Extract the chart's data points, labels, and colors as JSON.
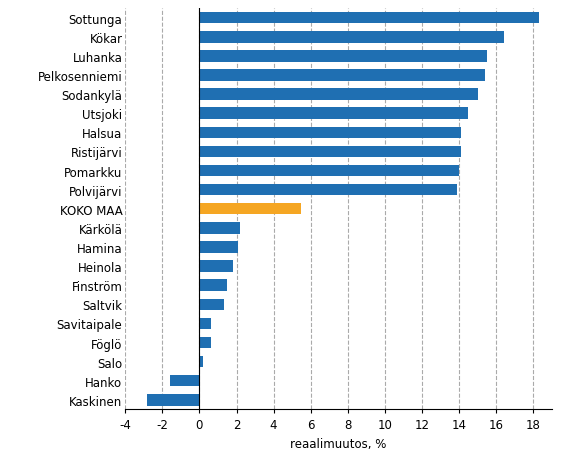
{
  "categories": [
    "Kaskinen",
    "Hanko",
    "Salo",
    "Föglö",
    "Savitaipale",
    "Saltvik",
    "Finström",
    "Heinola",
    "Hamina",
    "Kärkölä",
    "KOKO MAA",
    "Polvijärvi",
    "Pomarkku",
    "Ristijärvi",
    "Halsua",
    "Utsjoki",
    "Sodankylä",
    "Pelkosenniemi",
    "Luhanka",
    "Kökar",
    "Sottunga"
  ],
  "values": [
    -2.8,
    -1.6,
    0.2,
    0.6,
    0.6,
    1.3,
    1.5,
    1.8,
    2.1,
    2.2,
    5.5,
    13.9,
    14.0,
    14.1,
    14.1,
    14.5,
    15.0,
    15.4,
    15.5,
    16.4,
    18.3
  ],
  "bar_colors": [
    "#1F6FB2",
    "#1F6FB2",
    "#1F6FB2",
    "#1F6FB2",
    "#1F6FB2",
    "#1F6FB2",
    "#1F6FB2",
    "#1F6FB2",
    "#1F6FB2",
    "#1F6FB2",
    "#F5A623",
    "#1F6FB2",
    "#1F6FB2",
    "#1F6FB2",
    "#1F6FB2",
    "#1F6FB2",
    "#1F6FB2",
    "#1F6FB2",
    "#1F6FB2",
    "#1F6FB2",
    "#1F6FB2"
  ],
  "xlabel": "reaalimuutos, %",
  "xlim": [
    -4,
    19
  ],
  "xticks": [
    -4,
    -2,
    0,
    2,
    4,
    6,
    8,
    10,
    12,
    14,
    16,
    18
  ],
  "xtick_labels": [
    "-4",
    "-2",
    "0",
    "2",
    "4",
    "6",
    "8",
    "10",
    "12",
    "14",
    "16",
    "18"
  ],
  "grid_color": "#AAAAAA",
  "bar_edge_color": "none",
  "background_color": "#FFFFFF",
  "label_fontsize": 8.5,
  "xlabel_fontsize": 8.5,
  "bar_height": 0.6
}
